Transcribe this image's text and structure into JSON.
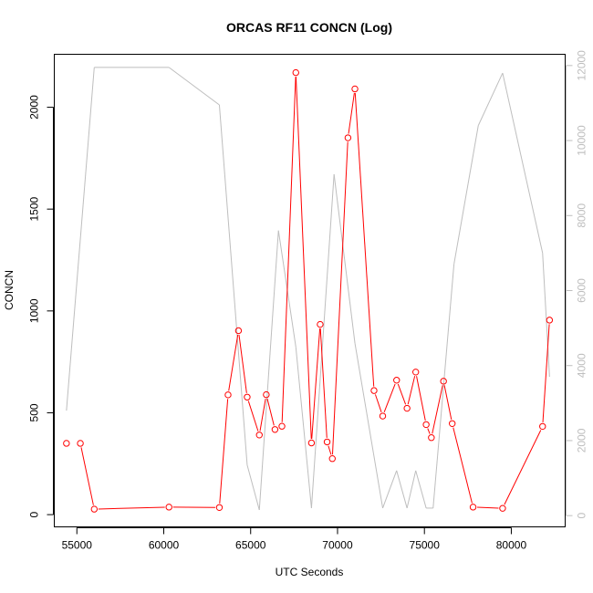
{
  "chart_data": {
    "type": "line",
    "title": "ORCAS RF11 CONCN (Log)",
    "xlabel": "UTC Seconds",
    "ylabel": "CONCN",
    "xlim": [
      53700,
      83100
    ],
    "ylim": [
      -60,
      2260
    ],
    "y2lim": [
      -300,
      12300
    ],
    "x_ticks": [
      55000,
      60000,
      65000,
      70000,
      75000,
      80000
    ],
    "y_ticks": [
      0,
      500,
      1000,
      1500,
      2000
    ],
    "y2_ticks": [
      0,
      2000,
      4000,
      6000,
      8000,
      10000,
      12000
    ],
    "grid": false,
    "legend": "none",
    "series": [
      {
        "axis": "left",
        "style": "line+points",
        "color": "#ff0000",
        "x": [
          54400,
          55200,
          56000,
          60300,
          63200,
          63700,
          64300,
          64800,
          65500,
          65900,
          66400,
          66800,
          67600,
          68500,
          69000,
          69400,
          69700,
          70600,
          71000,
          72100,
          72600,
          73400,
          74000,
          74500,
          75100,
          75400,
          76100,
          76600,
          77800,
          79500,
          81800,
          82200
        ],
        "y": [
          350,
          350,
          27,
          37,
          35,
          588,
          903,
          577,
          391,
          589,
          418,
          434,
          2170,
          352,
          934,
          357,
          275,
          1850,
          2090,
          609,
          484,
          660,
          522,
          700,
          442,
          378,
          655,
          447,
          37,
          31,
          433,
          955
        ],
        "gaps_after_index": [
          0
        ]
      },
      {
        "axis": "right",
        "style": "line",
        "color": "#bebebe",
        "x": [
          54400,
          56000,
          60300,
          63200,
          64800,
          65500,
          66600,
          67600,
          68500,
          69800,
          71000,
          72600,
          73400,
          74000,
          74500,
          75100,
          75500,
          76700,
          78100,
          79500,
          81800,
          82200
        ],
        "y": [
          2800,
          11950,
          11950,
          10950,
          1350,
          150,
          7600,
          4500,
          200,
          9100,
          4600,
          200,
          1200,
          200,
          1200,
          200,
          200,
          6700,
          10400,
          11800,
          7000,
          3700
        ]
      }
    ]
  },
  "colors": {
    "primary_series": "#ff0000",
    "secondary_series": "#bebebe",
    "secondary_axis_text": "#bebebe",
    "axis_text": "#000000"
  }
}
